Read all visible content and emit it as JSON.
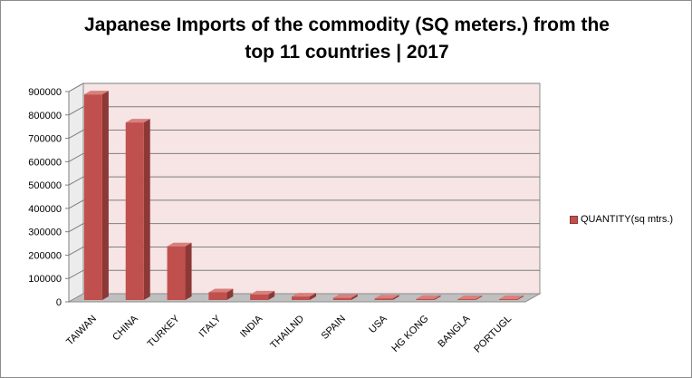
{
  "title": {
    "line1": "Japanese Imports of the commodity (SQ meters.) from the",
    "line2": "top 11 countries | 2017"
  },
  "colors": {
    "bar_front": "#c0504d",
    "bar_side": "#8c3836",
    "bar_top": "#d9807e",
    "plot_bg": "#f7e4e4",
    "floor": "#bfbfbf"
  },
  "chart_data": {
    "type": "bar",
    "title": "Japanese Imports of the commodity (SQ meters.) from the top 11 countries | 2017",
    "categories": [
      "TAIWAN",
      "CHINA",
      "TURKEY",
      "ITALY",
      "INDIA",
      "THAILND",
      "SPAIN",
      "USA",
      "HG KONG",
      "BANGLA",
      "PORTUGL"
    ],
    "series": [
      {
        "name": "QUANTITY(sq  mtrs.)",
        "values": [
          880000,
          760000,
          230000,
          33000,
          24000,
          15000,
          9000,
          7000,
          5000,
          4000,
          3000
        ]
      }
    ],
    "ylim": [
      0,
      900000
    ],
    "yticks": [
      0,
      100000,
      200000,
      300000,
      400000,
      500000,
      600000,
      700000,
      800000,
      900000
    ],
    "grid": true,
    "legend": "right"
  }
}
